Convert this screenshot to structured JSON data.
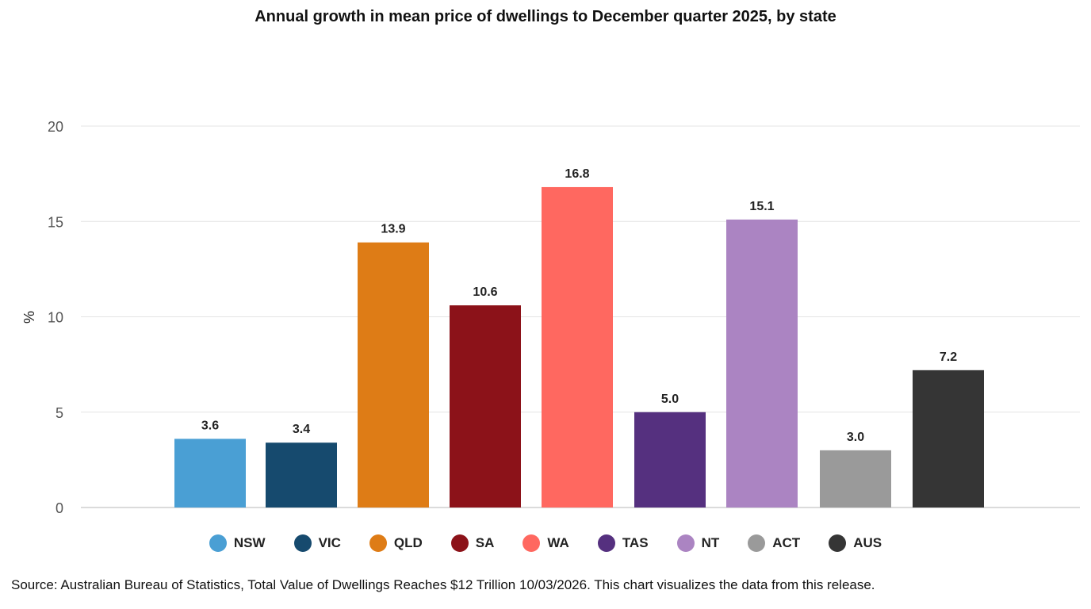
{
  "chart_data": {
    "type": "bar",
    "title": "Annual growth in mean price of dwellings to December quarter 2025, by state",
    "xlabel": "",
    "ylabel": "%",
    "ylim": [
      0,
      20
    ],
    "yticks": [
      0,
      5,
      10,
      15,
      20
    ],
    "grid": true,
    "legend_position": "bottom",
    "categories": [
      "NSW",
      "VIC",
      "QLD",
      "SA",
      "WA",
      "TAS",
      "NT",
      "ACT",
      "AUS"
    ],
    "values": [
      3.6,
      3.4,
      13.9,
      10.6,
      16.8,
      5.0,
      15.1,
      3.0,
      7.2
    ],
    "value_labels": [
      "3.6",
      "3.4",
      "13.9",
      "10.6",
      "16.8",
      "5.0",
      "15.1",
      "3.0",
      "7.2"
    ],
    "colors": [
      "#4a9fd4",
      "#164a6e",
      "#de7c16",
      "#8c1219",
      "#ff6860",
      "#55307f",
      "#ab84c2",
      "#9a9a9a",
      "#353535"
    ]
  },
  "source": "Source: Australian Bureau of Statistics, Total Value of Dwellings Reaches $12 Trillion 10/03/2026. This chart visualizes the data from this release."
}
